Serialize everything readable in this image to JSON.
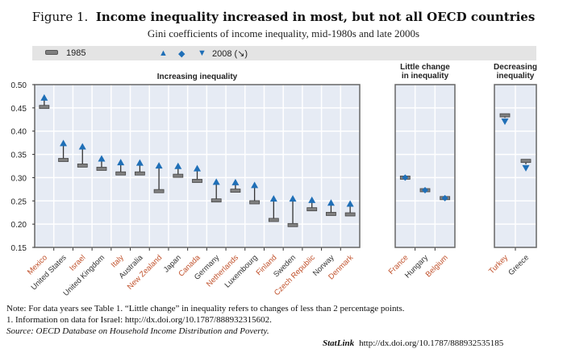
{
  "title_prefix": "Figure 1.",
  "title_main": "Income inequality increased in most, but not all OECD countries",
  "subtitle": "Gini coefficients of income inequality, mid-1980s and late 2000s",
  "legend": {
    "y1985": "1985",
    "y2008": "2008 (↘)",
    "colors": {
      "marker_1985": "#808080",
      "marker_2008": "#1f6fb7"
    }
  },
  "notes": {
    "note": "Note:  For data years see Table 1. “Little change” in inequality refers to changes of less than 2 percentage points.",
    "footnote1": "1.   Information on data for Israel: http://dx.doi.org/10.1787/888932315602.",
    "source": "Source:  OECD Database on Household Income Distribution and Poverty.",
    "statlink_label": "StatLink",
    "statlink_url": "http://dx.doi.org/10.1787/888932535185"
  },
  "chart_data": {
    "type": "dot-range",
    "ylim": [
      0.15,
      0.5
    ],
    "yticks": [
      "0.50",
      "0.45",
      "0.40",
      "0.35",
      "0.30",
      "0.25",
      "0.20",
      "0.15"
    ],
    "grid": true,
    "legend_placement": "top",
    "panels": [
      {
        "title": "Increasing inequality",
        "marker_2008": "up-triangle",
        "categories": [
          "Mexico",
          "United States",
          "Israel",
          "United Kingdom",
          "Italy",
          "Australia",
          "New Zealand",
          "Japan",
          "Canada",
          "Germany",
          "Netherlands",
          "Luxembourg",
          "Finland",
          "Sweden",
          "Czech Republic",
          "Norway",
          "Denmark"
        ],
        "series": [
          {
            "name": "1985",
            "values": [
              0.452,
              0.338,
              0.326,
              0.319,
              0.309,
              0.309,
              0.271,
              0.304,
              0.293,
              0.251,
              0.272,
              0.247,
              0.209,
              0.198,
              0.232,
              0.222,
              0.221
            ]
          },
          {
            "name": "2008",
            "values": [
              0.476,
              0.378,
              0.371,
              0.345,
              0.337,
              0.336,
              0.33,
              0.329,
              0.324,
              0.295,
              0.294,
              0.288,
              0.259,
              0.259,
              0.256,
              0.25,
              0.248
            ]
          }
        ]
      },
      {
        "title": "Little change in inequality",
        "marker_2008": "diamond",
        "categories": [
          "France",
          "Hungary",
          "Belgium"
        ],
        "series": [
          {
            "name": "1985",
            "values": [
              0.3,
              0.273,
              0.256
            ]
          },
          {
            "name": "2008",
            "values": [
              0.3,
              0.273,
              0.256
            ]
          }
        ]
      },
      {
        "title": "Decreasing inequality",
        "marker_2008": "down-triangle",
        "categories": [
          "Turkey",
          "Greece"
        ],
        "series": [
          {
            "name": "1985",
            "values": [
              0.434,
              0.336
            ]
          },
          {
            "name": "2008",
            "values": [
              0.42,
              0.32
            ]
          }
        ]
      }
    ]
  }
}
